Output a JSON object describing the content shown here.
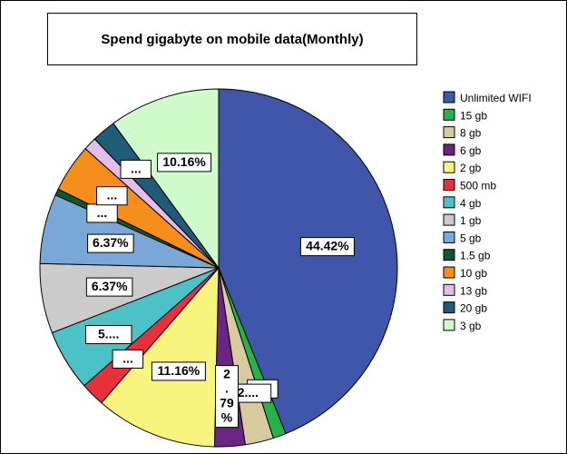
{
  "chart_data": {
    "type": "pie",
    "title": "Spend gigabyte on mobile data(Monthly)",
    "categories": [
      "Unlimited WIFI",
      "15 gb",
      "8 gb",
      "6 gb",
      "2 gb",
      "500 mb",
      "4 gb",
      "1 gb",
      "5 gb",
      "1.5 gb",
      "10 gb",
      "13 gb",
      "20 gb",
      "3 gb"
    ],
    "values": [
      44.42,
      1.2,
      2.6,
      2.79,
      11.16,
      2.2,
      5.6,
      6.37,
      6.37,
      0.6,
      4.4,
      1.2,
      2.2,
      10.16
    ],
    "colors": [
      "#3F56AB",
      "#25B24A",
      "#D6CA9E",
      "#6B2582",
      "#F8F57F",
      "#E8303B",
      "#4BC2C6",
      "#CBCBCB",
      "#7AA8D6",
      "#0D5A2E",
      "#F58E1B",
      "#E4BEEB",
      "#1F5C78",
      "#CFFBCB"
    ],
    "data_labels": [
      "44.42%",
      "...",
      "2....",
      "2\n.\n79\n%",
      "11.16%",
      "...",
      "5....",
      "6.37%",
      "6.37%",
      "...",
      "...",
      "",
      "...",
      "10.16%"
    ],
    "legend_position": "right"
  }
}
